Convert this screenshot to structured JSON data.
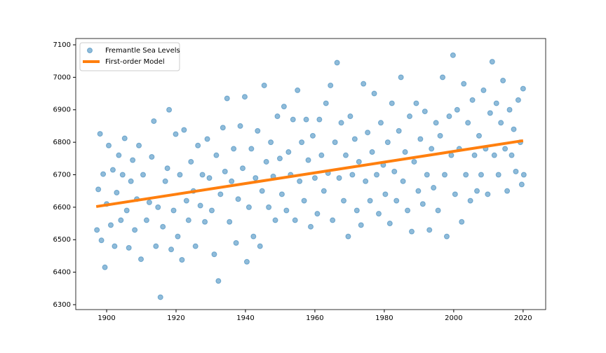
{
  "chart_data": {
    "type": "scatter",
    "series": [
      {
        "name": "Fremantle Sea Levels",
        "type": "scatter",
        "color": "#1f77b4",
        "x": [
          1897.2,
          1897.6,
          1898.1,
          1898.5,
          1899.0,
          1899.5,
          1900.0,
          1900.6,
          1901.2,
          1901.8,
          1902.3,
          1902.9,
          1903.5,
          1904.1,
          1904.6,
          1905.2,
          1905.8,
          1906.4,
          1907.0,
          1907.5,
          1908.1,
          1908.7,
          1909.3,
          1909.9,
          1910.5,
          1911.5,
          1912.3,
          1913.0,
          1913.6,
          1914.2,
          1914.8,
          1915.5,
          1916.2,
          1916.9,
          1917.5,
          1918.0,
          1918.6,
          1919.3,
          1919.9,
          1920.5,
          1921.1,
          1921.7,
          1922.3,
          1923.0,
          1923.6,
          1924.3,
          1925.0,
          1925.6,
          1926.3,
          1927.0,
          1927.6,
          1928.3,
          1929.0,
          1929.6,
          1930.3,
          1931.0,
          1931.6,
          1932.2,
          1932.8,
          1933.5,
          1934.1,
          1934.7,
          1935.4,
          1936.0,
          1936.6,
          1937.3,
          1937.9,
          1938.5,
          1939.2,
          1939.8,
          1940.4,
          1941.0,
          1941.7,
          1942.3,
          1942.9,
          1943.5,
          1944.2,
          1944.8,
          1945.4,
          1946.0,
          1946.7,
          1947.3,
          1948.0,
          1948.6,
          1949.2,
          1949.9,
          1950.5,
          1951.1,
          1951.8,
          1952.4,
          1953.0,
          1953.7,
          1954.3,
          1955.0,
          1955.6,
          1956.2,
          1956.9,
          1957.5,
          1958.1,
          1958.8,
          1959.4,
          1960.0,
          1960.7,
          1961.3,
          1961.9,
          1962.6,
          1963.2,
          1963.8,
          1964.5,
          1965.1,
          1965.8,
          1966.4,
          1967.0,
          1967.6,
          1968.3,
          1968.9,
          1969.6,
          1970.2,
          1970.8,
          1971.5,
          1972.1,
          1972.7,
          1973.3,
          1974.0,
          1974.6,
          1975.2,
          1975.9,
          1976.5,
          1977.1,
          1977.8,
          1978.4,
          1979.0,
          1979.7,
          1980.3,
          1981.0,
          1981.6,
          1982.2,
          1982.9,
          1983.5,
          1984.2,
          1984.8,
          1985.4,
          1986.0,
          1986.7,
          1987.3,
          1987.9,
          1988.6,
          1989.2,
          1989.8,
          1990.4,
          1991.1,
          1991.7,
          1992.3,
          1993.0,
          1993.6,
          1994.2,
          1994.9,
          1995.5,
          1996.1,
          1996.8,
          1997.4,
          1998.0,
          1998.7,
          1999.3,
          1999.8,
          2000.4,
          2001.0,
          2001.6,
          2002.3,
          2002.9,
          2003.5,
          2004.1,
          2004.8,
          2005.4,
          2006.0,
          2006.7,
          2007.3,
          2007.9,
          2008.6,
          2009.2,
          2009.8,
          2010.5,
          2011.1,
          2011.7,
          2012.3,
          2012.9,
          2013.6,
          2014.2,
          2014.8,
          2015.4,
          2016.1,
          2016.7,
          2017.3,
          2017.9,
          2018.6,
          2019.2,
          2019.6,
          2020.0,
          2020.2
        ],
        "values": [
          6530,
          6655,
          6826,
          6498,
          6702,
          6415,
          6610,
          6790,
          6545,
          6715,
          6480,
          6645,
          6760,
          6560,
          6700,
          6812,
          6590,
          6475,
          6680,
          6745,
          6530,
          6625,
          6790,
          6440,
          6700,
          6560,
          6615,
          6755,
          6865,
          6480,
          6600,
          6323,
          6540,
          6680,
          6720,
          6900,
          6470,
          6590,
          6825,
          6510,
          6700,
          6438,
          6838,
          6620,
          6560,
          6740,
          6650,
          6480,
          6790,
          6605,
          6700,
          6555,
          6810,
          6690,
          6590,
          6455,
          6760,
          6373,
          6640,
          6845,
          6710,
          6935,
          6555,
          6680,
          6780,
          6490,
          6625,
          6850,
          6720,
          6940,
          6432,
          6600,
          6780,
          6510,
          6690,
          6835,
          6480,
          6650,
          6975,
          6740,
          6600,
          6800,
          6695,
          6560,
          6880,
          6750,
          6640,
          6910,
          6590,
          6770,
          6700,
          6870,
          6560,
          6960,
          6680,
          6800,
          6620,
          6870,
          6745,
          6540,
          6820,
          6690,
          6580,
          6870,
          6760,
          6650,
          6920,
          6705,
          6975,
          6560,
          6800,
          7045,
          6690,
          6860,
          6620,
          6760,
          6510,
          6880,
          6700,
          6810,
          6590,
          6740,
          6545,
          6980,
          6680,
          6830,
          6620,
          6770,
          6950,
          6700,
          6580,
          6860,
          6730,
          6640,
          6800,
          6550,
          6920,
          6710,
          6620,
          6835,
          7000,
          6680,
          6770,
          6590,
          6880,
          6525,
          6740,
          6920,
          6650,
          6810,
          6610,
          6895,
          6700,
          6530,
          6780,
          6660,
          6860,
          6590,
          6820,
          7000,
          6700,
          6510,
          6880,
          6760,
          7068,
          6640,
          6900,
          6780,
          6555,
          6980,
          6700,
          6860,
          6620,
          6930,
          6760,
          6650,
          6820,
          6700,
          6960,
          6780,
          6640,
          6890,
          7048,
          6760,
          6920,
          6700,
          6860,
          6990,
          6780,
          6650,
          6900,
          6760,
          6840,
          6710,
          6930,
          6800,
          6670,
          6965,
          6700
        ]
      },
      {
        "name": "First-order Model",
        "type": "line",
        "color": "#ff7f0e",
        "x": [
          1897,
          2020
        ],
        "values": [
          6602,
          6805
        ]
      }
    ],
    "xlim": [
      1891.1,
      2026.5
    ],
    "ylim": [
      6284.9,
      7119.4
    ],
    "xticks": [
      1900,
      1920,
      1940,
      1960,
      1980,
      2000,
      2020
    ],
    "yticks": [
      6300,
      6400,
      6500,
      6600,
      6700,
      6800,
      6900,
      7000,
      7100
    ],
    "legend": "upper left"
  }
}
